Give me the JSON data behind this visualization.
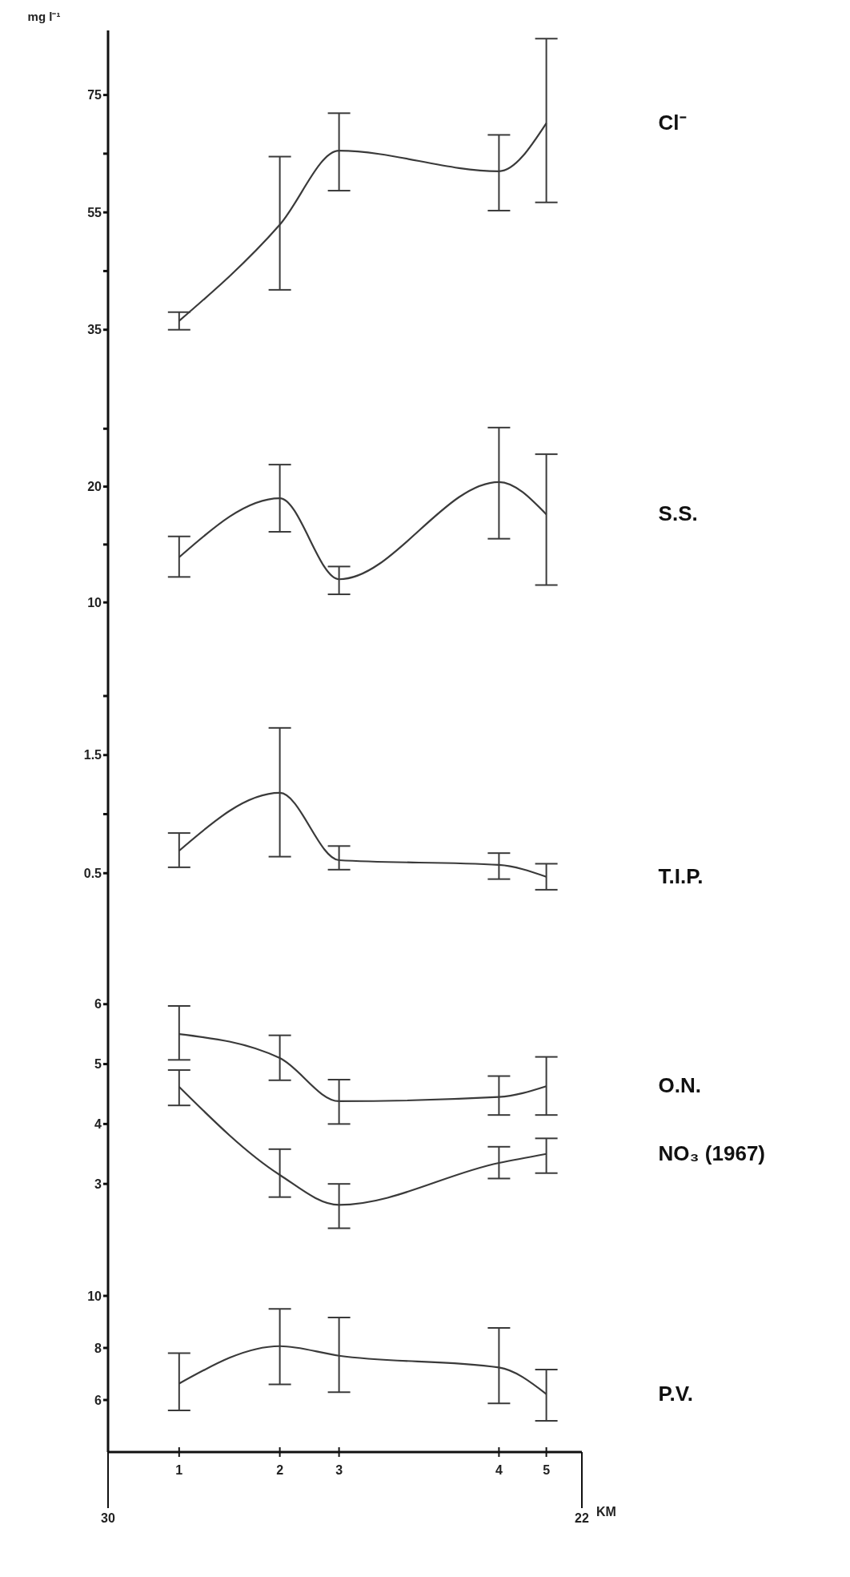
{
  "chart_data": [
    {
      "type": "line",
      "ylabel": "mg l⁻¹",
      "x": [
        28.8,
        27.1,
        26.1,
        23.4,
        22.6
      ],
      "xlim": [
        30,
        22
      ],
      "ylim": [
        28,
        86
      ],
      "yticks": [
        35,
        {
          "value": 45,
          "label": null
        },
        55,
        {
          "value": 65,
          "label": null
        },
        75
      ],
      "tick_labels": "y",
      "series": [
        {
          "name": "Cl⁻",
          "color": "#3a3a3a",
          "values": [
            36.5,
            52.9,
            65.5,
            62,
            70.2
          ],
          "errors": [
            [
              35,
              38
            ],
            [
              41.8,
              64.5
            ],
            [
              58.7,
              71.9
            ],
            [
              55.3,
              68.2
            ],
            [
              56.7,
              84.6
            ]
          ]
        }
      ]
    },
    {
      "type": "line",
      "x": [
        28.8,
        27.1,
        26.1,
        23.4,
        22.6
      ],
      "xlim": [
        30,
        22
      ],
      "ylim": [
        6,
        30
      ],
      "yticks": [
        10,
        {
          "value": 15,
          "label": null
        },
        20,
        {
          "value": 25,
          "label": null
        }
      ],
      "tick_labels": "y",
      "series": [
        {
          "name": "S.S.",
          "color": "#3a3a3a",
          "values": [
            13.9,
            19,
            12,
            20.4,
            17.6
          ],
          "errors": [
            [
              12.2,
              15.7
            ],
            [
              16.1,
              21.9
            ],
            [
              10.7,
              13.1
            ],
            [
              15.5,
              25.1
            ],
            [
              11.5,
              22.8
            ]
          ]
        }
      ]
    },
    {
      "type": "line",
      "x": [
        28.8,
        27.1,
        26.1,
        23.4,
        22.6
      ],
      "xlim": [
        30,
        22
      ],
      "ylim": [
        0,
        2.4
      ],
      "yticks": [
        0.5,
        {
          "value": 1,
          "label": null
        },
        1.5,
        {
          "value": 2,
          "label": null
        }
      ],
      "tick_labels": "y",
      "series": [
        {
          "name": "T.I.P.",
          "color": "#3a3a3a",
          "values": [
            0.69,
            1.18,
            0.61,
            0.57,
            0.47
          ],
          "errors": [
            [
              0.55,
              0.84
            ],
            [
              0.64,
              1.73
            ],
            [
              0.53,
              0.73
            ],
            [
              0.45,
              0.67
            ],
            [
              0.36,
              0.58
            ]
          ]
        }
      ]
    },
    {
      "type": "line",
      "x": [
        28.8,
        27.1,
        26.1,
        23.4,
        22.6
      ],
      "xlim": [
        30,
        22
      ],
      "ylim": [
        2,
        7.2
      ],
      "yticks": [
        3,
        4,
        5,
        6
      ],
      "tick_labels": "y",
      "series": [
        {
          "name": "O.N.",
          "color": "#3a3a3a",
          "values": [
            5.5,
            5.1,
            4.38,
            4.45,
            4.63
          ],
          "errors": [
            [
              5.07,
              5.97
            ],
            [
              4.73,
              5.48
            ],
            [
              4,
              4.74
            ],
            [
              4.15,
              4.8
            ],
            [
              4.15,
              5.12
            ]
          ]
        },
        {
          "name": "NO₃ (1967)",
          "color": "#3a3a3a",
          "values": [
            4.62,
            3.15,
            2.65,
            3.35,
            3.5
          ],
          "errors": [
            [
              4.31,
              4.9
            ],
            [
              2.78,
              3.58
            ],
            [
              2.26,
              3
            ],
            [
              3.09,
              3.62
            ],
            [
              3.18,
              3.76
            ]
          ]
        }
      ]
    },
    {
      "type": "line",
      "x": [
        28.8,
        27.1,
        26.1,
        23.4,
        22.6
      ],
      "xlim": [
        30,
        22
      ],
      "xlabel": "KM",
      "xticks": [
        30,
        22
      ],
      "ylim": [
        4,
        12
      ],
      "yticks": [
        6,
        8,
        10
      ],
      "annotations": [
        {
          "text": "1",
          "x": 28.8
        },
        {
          "text": "2",
          "x": 27.1
        },
        {
          "text": "3",
          "x": 26.1
        },
        {
          "text": "4",
          "x": 23.4
        },
        {
          "text": "5",
          "x": 22.6
        }
      ],
      "series": [
        {
          "name": "P.V.",
          "color": "#3a3a3a",
          "values": [
            6.63,
            8.07,
            7.7,
            7.25,
            6.23
          ],
          "errors": [
            [
              5.6,
              7.8
            ],
            [
              6.6,
              9.5
            ],
            [
              6.3,
              9.17
            ],
            [
              5.87,
              8.77
            ],
            [
              5.2,
              7.17
            ]
          ]
        }
      ]
    }
  ]
}
